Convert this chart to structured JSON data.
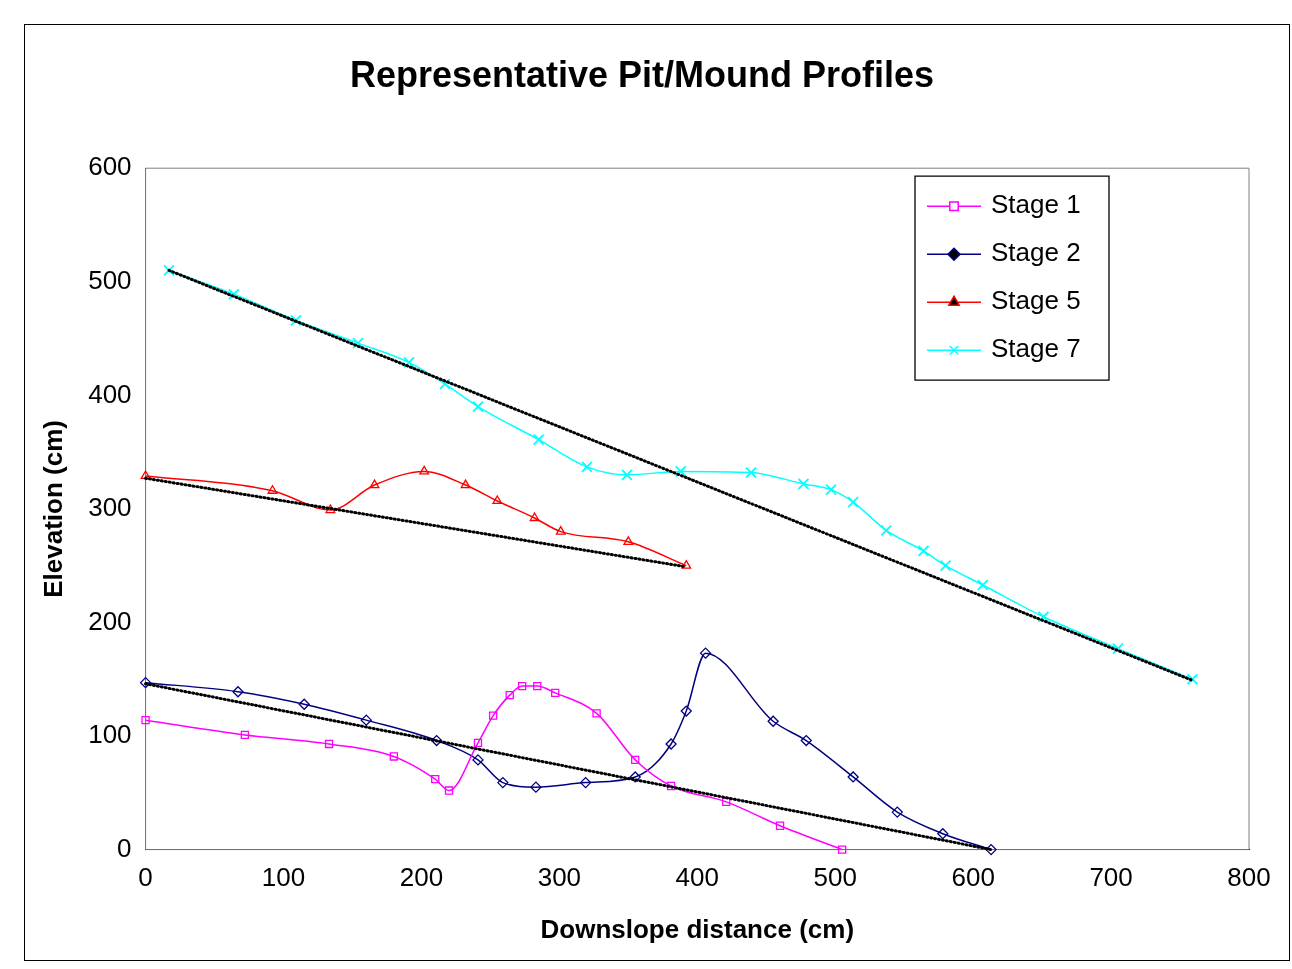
{
  "chart_data": {
    "type": "line",
    "title": "Representative Pit/Mound Profiles",
    "xlabel": "Downslope distance (cm)",
    "ylabel": "Elevation (cm)",
    "xlim": [
      0,
      800
    ],
    "xticks": [
      0,
      100,
      200,
      300,
      400,
      500,
      600,
      700,
      800
    ],
    "ylim": [
      0,
      600
    ],
    "yticks": [
      0,
      100,
      200,
      300,
      400,
      500,
      600
    ],
    "grid": false,
    "legend": "top right",
    "series": [
      {
        "name": "Stage 1",
        "color": "#ff00ff",
        "marker": "square",
        "x": [
          0,
          72,
          133,
          180,
          210,
          220,
          241,
          252,
          264,
          273,
          284,
          297,
          327,
          355,
          381,
          421,
          460,
          505
        ],
        "values": [
          114,
          101,
          93,
          82,
          62,
          52,
          94,
          118,
          136,
          144,
          144,
          138,
          120,
          79,
          56,
          42,
          21,
          0
        ]
      },
      {
        "name": "Stage 2",
        "color": "#000080",
        "marker": "diamond",
        "x": [
          0,
          67,
          115,
          160,
          211,
          241,
          259,
          283,
          319,
          355,
          381,
          392,
          406,
          455,
          479,
          513,
          545,
          578,
          613
        ],
        "values": [
          147,
          139,
          128,
          114,
          96,
          79,
          59,
          55,
          59,
          64,
          93,
          122,
          173,
          113,
          96,
          64,
          33,
          14,
          0
        ]
      },
      {
        "name": "Stage 5",
        "color": "#ff0000",
        "marker": "triangle",
        "x": [
          0,
          92,
          134,
          166,
          202,
          232,
          255,
          282,
          301,
          350,
          392
        ],
        "values": [
          329,
          316,
          299,
          321,
          333,
          321,
          307,
          292,
          280,
          271,
          250
        ]
      },
      {
        "name": "Stage 7",
        "color": "#00ffff",
        "marker": "cross",
        "x": [
          17,
          64,
          109,
          154,
          191,
          217,
          241,
          285,
          320,
          349,
          388,
          439,
          477,
          497,
          513,
          537,
          564,
          580,
          607,
          651,
          705,
          759
        ],
        "values": [
          510,
          489,
          466,
          446,
          429,
          410,
          390,
          361,
          337,
          330,
          333,
          332,
          322,
          317,
          306,
          281,
          263,
          250,
          233,
          205,
          177,
          150
        ]
      },
      {
        "color": "#000000",
        "marker": "none",
        "line_style": "dotted",
        "x": [
          17,
          759
        ],
        "values": [
          510,
          149
        ]
      },
      {
        "color": "#000000",
        "marker": "none",
        "line_style": "dotted",
        "x": [
          0,
          392
        ],
        "values": [
          327,
          249
        ]
      },
      {
        "color": "#000000",
        "marker": "none",
        "line_style": "dotted",
        "x": [
          0,
          613
        ],
        "values": [
          146,
          0
        ]
      }
    ]
  }
}
